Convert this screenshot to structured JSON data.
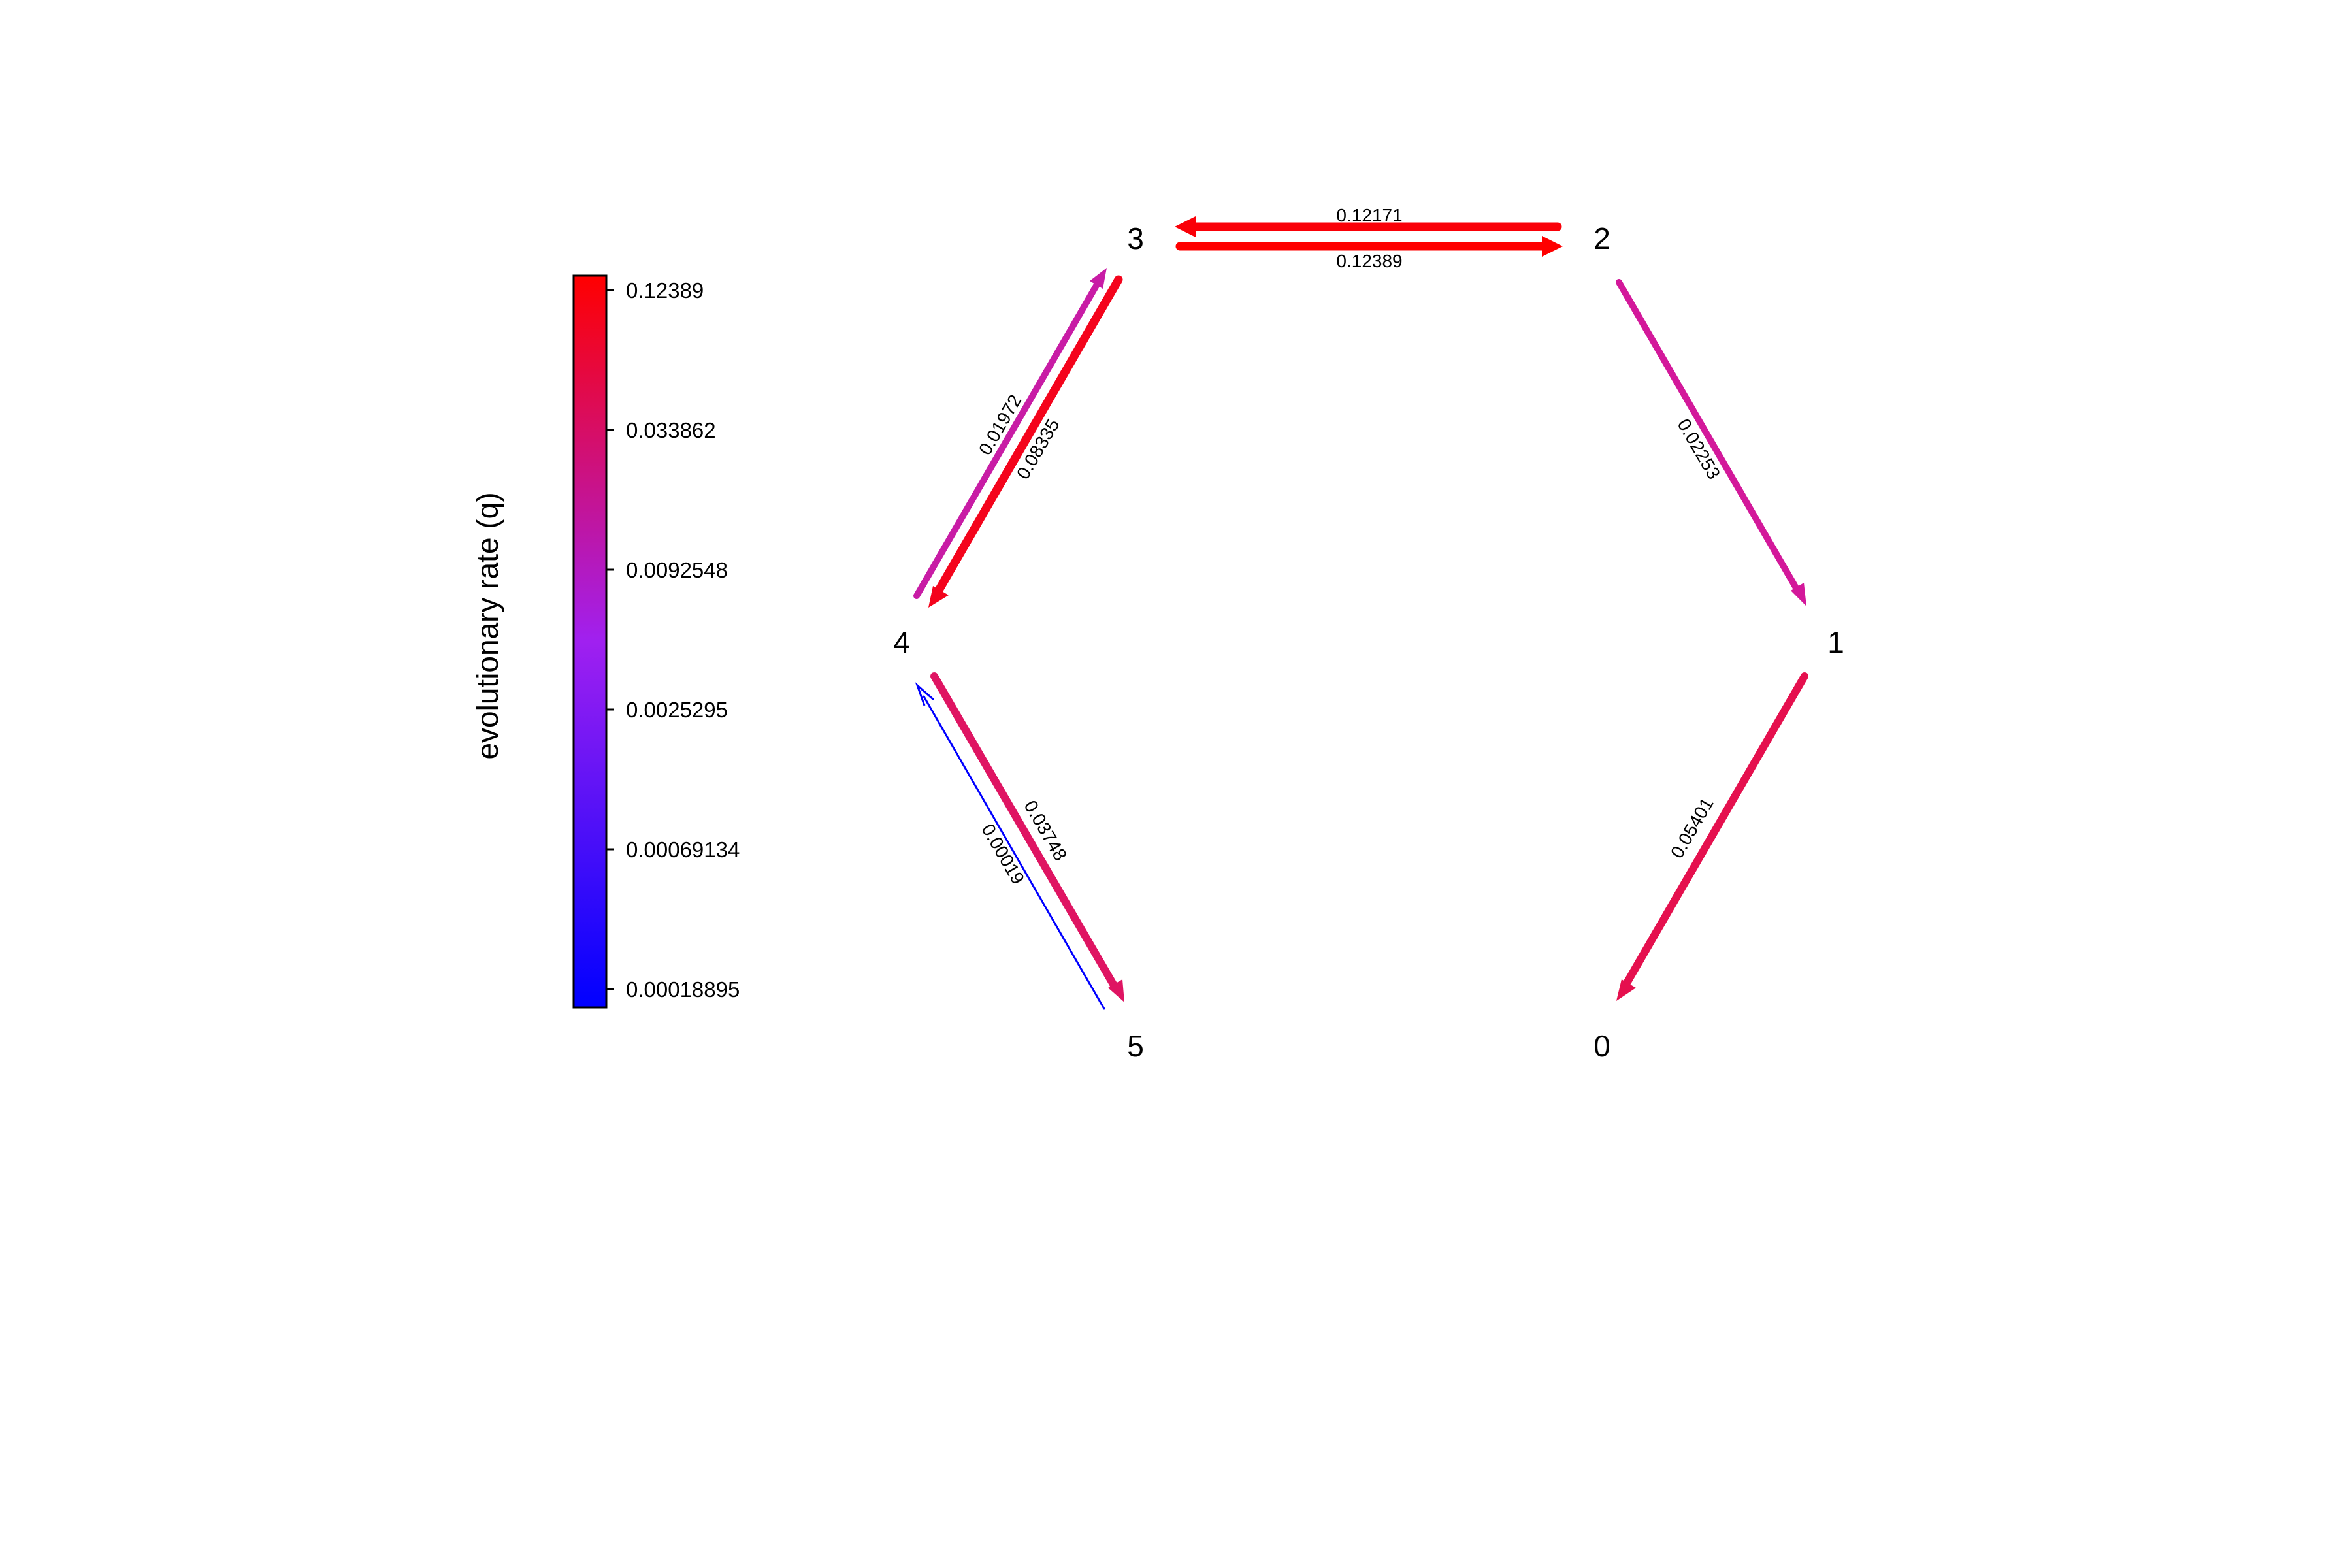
{
  "colorbar": {
    "title": "evolutionary rate (q)",
    "ticks": [
      "0.12389",
      "0.033862",
      "0.0092548",
      "0.0025295",
      "0.00069134",
      "0.00018895"
    ],
    "colors": {
      "high": "#ff0000",
      "mid": "#a020f0",
      "low": "#0000ff"
    }
  },
  "nodes": [
    {
      "id": "0",
      "label": "0"
    },
    {
      "id": "1",
      "label": "1"
    },
    {
      "id": "2",
      "label": "2"
    },
    {
      "id": "3",
      "label": "3"
    },
    {
      "id": "4",
      "label": "4"
    },
    {
      "id": "5",
      "label": "5"
    }
  ],
  "edges": [
    {
      "from": "2",
      "to": "3",
      "rate": 0.12171,
      "label": "0.12171"
    },
    {
      "from": "3",
      "to": "2",
      "rate": 0.12389,
      "label": "0.12389"
    },
    {
      "from": "2",
      "to": "1",
      "rate": 0.02253,
      "label": "0.02253"
    },
    {
      "from": "1",
      "to": "0",
      "rate": 0.05401,
      "label": "0.05401"
    },
    {
      "from": "4",
      "to": "3",
      "rate": 0.01972,
      "label": "0.01972"
    },
    {
      "from": "3",
      "to": "4",
      "rate": 0.08335,
      "label": "0.08335"
    },
    {
      "from": "4",
      "to": "5",
      "rate": 0.03748,
      "label": "0.03748"
    },
    {
      "from": "5",
      "to": "4",
      "rate": 0.00019,
      "label": "0.00019"
    }
  ]
}
